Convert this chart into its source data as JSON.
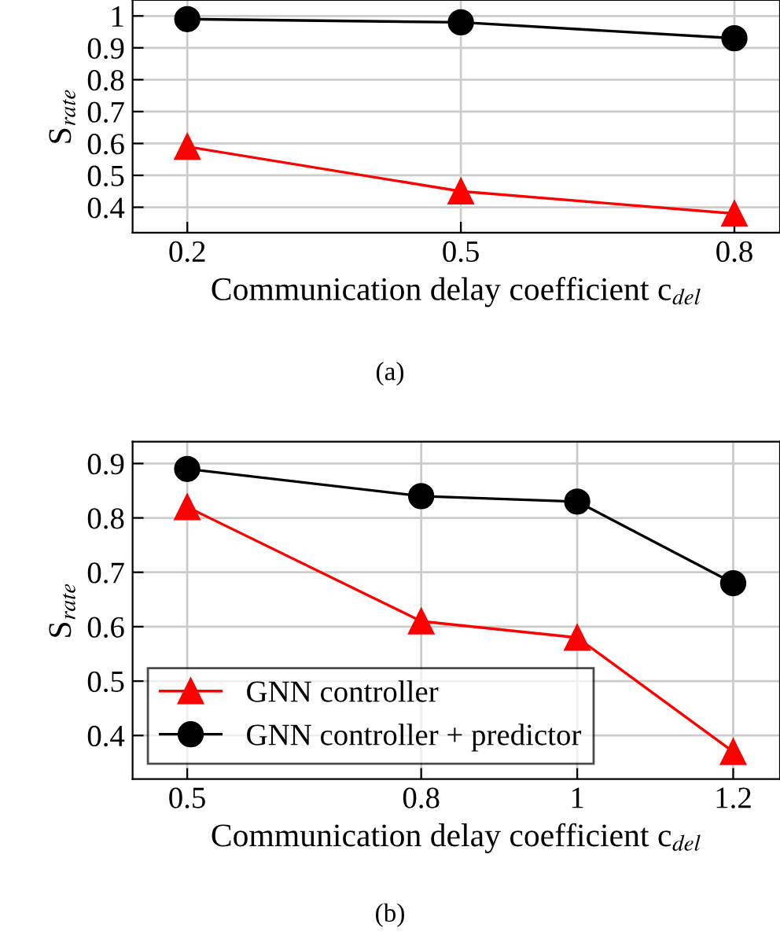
{
  "chart_data": [
    {
      "type": "line",
      "x": [
        0.2,
        0.5,
        0.8
      ],
      "xlim": [
        0.14,
        0.85
      ],
      "ylim": [
        0.32,
        1.05
      ],
      "xticks": [
        0.2,
        0.5,
        0.8
      ],
      "yticks": [
        0.4,
        0.5,
        0.6,
        0.7,
        0.8,
        0.9,
        1
      ],
      "ylabel": "S$_{rate}$",
      "xlabel": "Communication delay coefficient c$_{del}$",
      "annotations": [
        "(a)"
      ],
      "grid": true,
      "legend": false,
      "series": [
        {
          "color": "#ff0000",
          "marker": "triangle",
          "values": [
            0.59,
            0.45,
            0.38
          ]
        },
        {
          "color": "#000000",
          "marker": "circle",
          "values": [
            0.99,
            0.98,
            0.93
          ]
        }
      ]
    },
    {
      "type": "line",
      "x": [
        0.5,
        0.8,
        1,
        1.2
      ],
      "xlim": [
        0.43,
        1.26
      ],
      "ylim": [
        0.32,
        0.94
      ],
      "xticks": [
        0.5,
        0.8,
        1,
        1.2
      ],
      "yticks": [
        0.4,
        0.5,
        0.6,
        0.7,
        0.8,
        0.9
      ],
      "ylabel": "S$_{rate}$",
      "xlabel": "Communication delay coefficient c$_{del}$",
      "annotations": [
        "(b)"
      ],
      "grid": true,
      "legend": "bottom left",
      "series": [
        {
          "name": "GNN controller",
          "color": "#ff0000",
          "marker": "triangle",
          "values": [
            0.82,
            0.61,
            0.58,
            0.37
          ]
        },
        {
          "name": "GNN controller + predictor",
          "color": "#000000",
          "marker": "circle",
          "values": [
            0.89,
            0.84,
            0.83,
            0.68
          ]
        }
      ]
    }
  ]
}
